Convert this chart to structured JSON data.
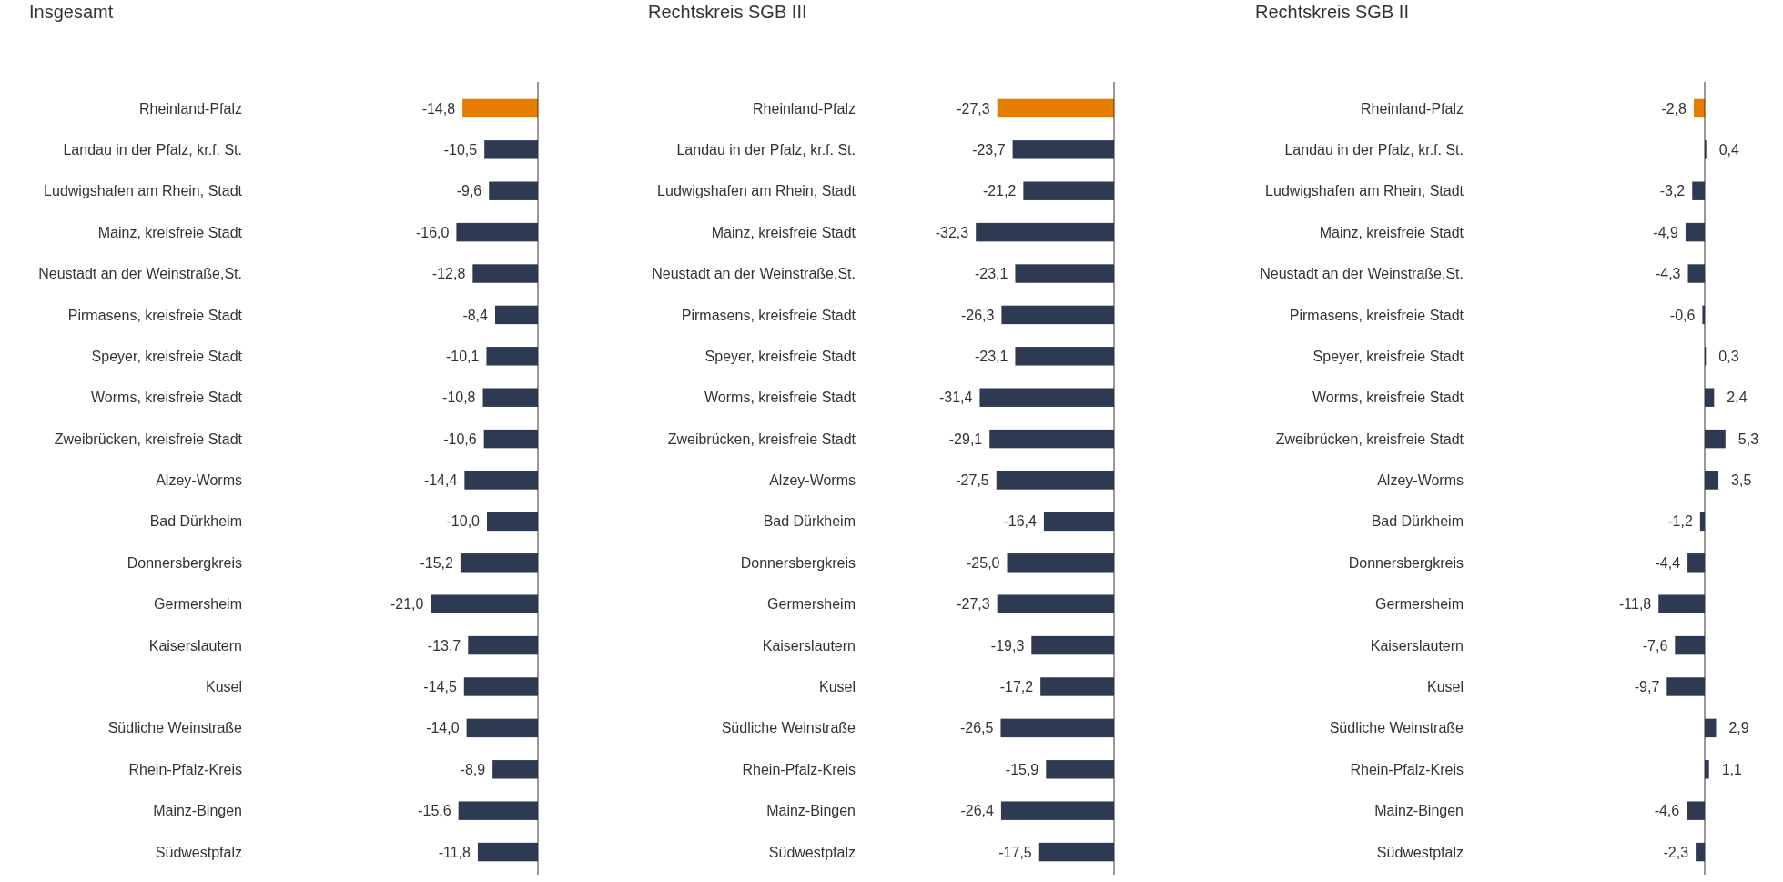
{
  "chart_data": [
    {
      "type": "bar",
      "orientation": "horizontal",
      "title": "Insgesamt",
      "categories": [
        "Rheinland-Pfalz",
        "Landau in der Pfalz, kr.f. St.",
        "Ludwigshafen am Rhein, Stadt",
        "Mainz, kreisfreie Stadt",
        "Neustadt an der Weinstraße,St.",
        "Pirmasens, kreisfreie Stadt",
        "Speyer, kreisfreie Stadt",
        "Worms, kreisfreie Stadt",
        "Zweibrücken, kreisfreie Stadt",
        "Alzey-Worms",
        "Bad Dürkheim",
        "Donnersbergkreis",
        "Germersheim",
        "Kaiserslautern",
        "Kusel",
        "Südliche Weinstraße",
        "Rhein-Pfalz-Kreis",
        "Mainz-Bingen",
        "Südwestpfalz"
      ],
      "values": [
        -14.8,
        -10.5,
        -9.6,
        -16.0,
        -12.8,
        -8.4,
        -10.1,
        -10.8,
        -10.6,
        -14.4,
        -10.0,
        -15.2,
        -21.0,
        -13.7,
        -14.5,
        -14.0,
        -8.9,
        -15.6,
        -11.8
      ],
      "value_labels": [
        "-14,8",
        "-10,5",
        "-9,6",
        "-16,0",
        "-12,8",
        "-8,4",
        "-10,1",
        "-10,8",
        "-10,6",
        "-14,4",
        "-10,0",
        "-15,2",
        "-21,0",
        "-13,7",
        "-14,5",
        "-14,0",
        "-8,9",
        "-15,6",
        "-11,8"
      ],
      "colors": [
        "#e67c00",
        "#2e3a52",
        "#2e3a52",
        "#2e3a52",
        "#2e3a52",
        "#2e3a52",
        "#2e3a52",
        "#2e3a52",
        "#2e3a52",
        "#2e3a52",
        "#2e3a52",
        "#2e3a52",
        "#2e3a52",
        "#2e3a52",
        "#2e3a52",
        "#2e3a52",
        "#2e3a52",
        "#2e3a52",
        "#2e3a52"
      ]
    },
    {
      "type": "bar",
      "orientation": "horizontal",
      "title": "Rechtskreis SGB III",
      "categories": [
        "Rheinland-Pfalz",
        "Landau in der Pfalz, kr.f. St.",
        "Ludwigshafen am Rhein, Stadt",
        "Mainz, kreisfreie Stadt",
        "Neustadt an der Weinstraße,St.",
        "Pirmasens, kreisfreie Stadt",
        "Speyer, kreisfreie Stadt",
        "Worms, kreisfreie Stadt",
        "Zweibrücken, kreisfreie Stadt",
        "Alzey-Worms",
        "Bad Dürkheim",
        "Donnersbergkreis",
        "Germersheim",
        "Kaiserslautern",
        "Kusel",
        "Südliche Weinstraße",
        "Rhein-Pfalz-Kreis",
        "Mainz-Bingen",
        "Südwestpfalz"
      ],
      "values": [
        -27.3,
        -23.7,
        -21.2,
        -32.3,
        -23.1,
        -26.3,
        -23.1,
        -31.4,
        -29.1,
        -27.5,
        -16.4,
        -25.0,
        -27.3,
        -19.3,
        -17.2,
        -26.5,
        -15.9,
        -26.4,
        -17.5
      ],
      "value_labels": [
        "-27,3",
        "-23,7",
        "-21,2",
        "-32,3",
        "-23,1",
        "-26,3",
        "-23,1",
        "-31,4",
        "-29,1",
        "-27,5",
        "-16,4",
        "-25,0",
        "-27,3",
        "-19,3",
        "-17,2",
        "-26,5",
        "-15,9",
        "-26,4",
        "-17,5"
      ],
      "colors": [
        "#e67c00",
        "#2e3a52",
        "#2e3a52",
        "#2e3a52",
        "#2e3a52",
        "#2e3a52",
        "#2e3a52",
        "#2e3a52",
        "#2e3a52",
        "#2e3a52",
        "#2e3a52",
        "#2e3a52",
        "#2e3a52",
        "#2e3a52",
        "#2e3a52",
        "#2e3a52",
        "#2e3a52",
        "#2e3a52",
        "#2e3a52"
      ]
    },
    {
      "type": "bar",
      "orientation": "horizontal",
      "title": "Rechtskreis SGB II",
      "categories": [
        "Rheinland-Pfalz",
        "Landau in der Pfalz, kr.f. St.",
        "Ludwigshafen am Rhein, Stadt",
        "Mainz, kreisfreie Stadt",
        "Neustadt an der Weinstraße,St.",
        "Pirmasens, kreisfreie Stadt",
        "Speyer, kreisfreie Stadt",
        "Worms, kreisfreie Stadt",
        "Zweibrücken, kreisfreie Stadt",
        "Alzey-Worms",
        "Bad Dürkheim",
        "Donnersbergkreis",
        "Germersheim",
        "Kaiserslautern",
        "Kusel",
        "Südliche Weinstraße",
        "Rhein-Pfalz-Kreis",
        "Mainz-Bingen",
        "Südwestpfalz"
      ],
      "values": [
        -2.8,
        0.4,
        -3.2,
        -4.9,
        -4.3,
        -0.6,
        0.3,
        2.4,
        5.3,
        3.5,
        -1.2,
        -4.4,
        -11.8,
        -7.6,
        -9.7,
        2.9,
        1.1,
        -4.6,
        -2.3
      ],
      "value_labels": [
        "-2,8",
        "0,4",
        "-3,2",
        "-4,9",
        "-4,3",
        "-0,6",
        "0,3",
        "2,4",
        "5,3",
        "3,5",
        "-1,2",
        "-4,4",
        "-11,8",
        "-7,6",
        "-9,7",
        "2,9",
        "1,1",
        "-4,6",
        "-2,3"
      ],
      "colors": [
        "#e67c00",
        "#2e3a52",
        "#2e3a52",
        "#2e3a52",
        "#2e3a52",
        "#2e3a52",
        "#2e3a52",
        "#2e3a52",
        "#2e3a52",
        "#2e3a52",
        "#2e3a52",
        "#2e3a52",
        "#2e3a52",
        "#2e3a52",
        "#2e3a52",
        "#2e3a52",
        "#2e3a52",
        "#2e3a52",
        "#2e3a52"
      ]
    }
  ]
}
